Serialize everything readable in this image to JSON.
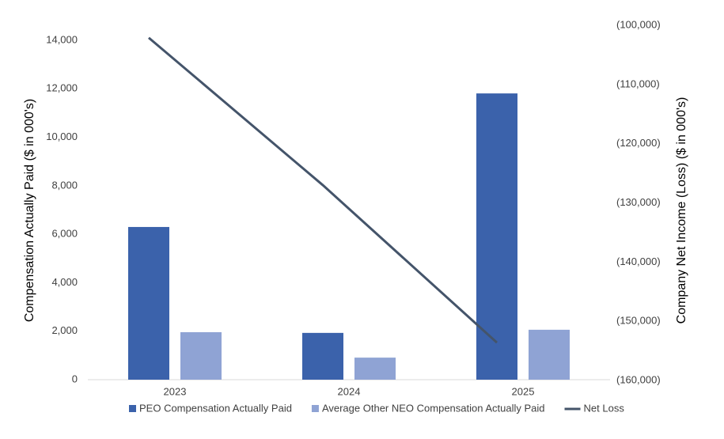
{
  "chart_data": {
    "type": "bar",
    "categories": [
      "2023",
      "2024",
      "2025"
    ],
    "series": [
      {
        "name": "PEO Compensation Actually Paid",
        "color": "#3b62ab",
        "type": "bar",
        "values": [
          6300,
          1930,
          11810
        ]
      },
      {
        "name": "Average Other NEO Compensation Actually Paid",
        "color": "#8fa3d4",
        "type": "bar",
        "values": [
          1960,
          910,
          2060
        ]
      },
      {
        "name": "Net Loss",
        "color": "#44546a",
        "type": "line",
        "axis": "y2",
        "values": [
          -102100,
          -127000,
          -153600
        ]
      }
    ],
    "y_label": "Compensation Actually Paid ($ in 000's)",
    "y2_label": "Company Net Income (Loss) ($ in 000's)",
    "ylim": [
      0,
      14000
    ],
    "yticks": [
      0,
      {
        "value": 2000,
        "label": "2,000"
      },
      {
        "value": 4000,
        "label": "4,000"
      },
      {
        "value": 6000,
        "label": "6,000"
      },
      {
        "value": 8000,
        "label": "8,000"
      },
      {
        "value": 10000,
        "label": "10,000"
      },
      {
        "value": 12000,
        "label": "12,000"
      },
      {
        "value": 14000,
        "label": "14,000"
      }
    ],
    "y2lim": [
      -160000,
      -100000
    ],
    "y2ticks": [
      {
        "value": -160000,
        "label": "(160,000)"
      },
      {
        "value": -150000,
        "label": "(150,000)"
      },
      {
        "value": -140000,
        "label": "(140,000)"
      },
      {
        "value": -130000,
        "label": "(130,000)"
      },
      {
        "value": -120000,
        "label": "(120,000)"
      },
      {
        "value": -110000,
        "label": "(110,000)"
      },
      {
        "value": -100000,
        "label": "(100,000)"
      }
    ],
    "grid": false,
    "legend": "bottom"
  }
}
